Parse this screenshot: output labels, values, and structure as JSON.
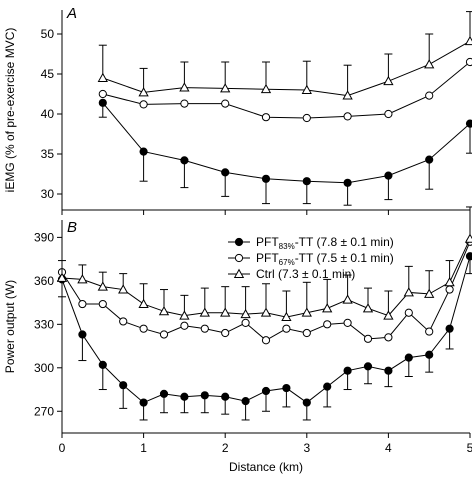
{
  "chart_data": [
    {
      "type": "line",
      "panel_label": "A",
      "title": "",
      "xlabel": "",
      "ylabel": "iEMG (% of pre-exercise MVC)",
      "xlim": [
        0,
        5
      ],
      "ylim": [
        28,
        53
      ],
      "yticks": [
        30,
        35,
        40,
        45,
        50
      ],
      "grid": false,
      "series": [
        {
          "key": "pft83",
          "marker": "filled-circle",
          "x": [
            0.5,
            1.0,
            1.5,
            2.0,
            2.5,
            3.0,
            3.5,
            4.0,
            4.5,
            5.0
          ],
          "y": [
            41.4,
            35.3,
            34.2,
            32.7,
            31.9,
            31.6,
            31.4,
            32.3,
            34.3,
            38.8
          ],
          "err": [
            1.8,
            3.7,
            3.4,
            3.0,
            3.1,
            2.8,
            2.8,
            3.0,
            3.7,
            3.7
          ],
          "err_dir": "down"
        },
        {
          "key": "pft67",
          "marker": "open-circle",
          "x": [
            0.5,
            1.0,
            1.5,
            2.0,
            2.5,
            3.0,
            3.5,
            4.0,
            4.5,
            5.0
          ],
          "y": [
            42.5,
            41.2,
            41.3,
            41.3,
            39.6,
            39.5,
            39.7,
            40.0,
            42.3,
            46.5
          ],
          "err": [],
          "err_dir": "none"
        },
        {
          "key": "ctrl",
          "marker": "open-triangle",
          "x": [
            0.5,
            1.0,
            1.5,
            2.0,
            2.5,
            3.0,
            3.5,
            4.0,
            4.5,
            5.0
          ],
          "y": [
            44.5,
            42.7,
            43.3,
            43.2,
            43.1,
            43.0,
            42.3,
            44.1,
            46.2,
            49.1
          ],
          "err": [
            4.1,
            3.0,
            3.2,
            3.3,
            3.4,
            3.6,
            3.8,
            3.4,
            3.8,
            3.7
          ],
          "err_dir": "up"
        }
      ]
    },
    {
      "type": "line",
      "panel_label": "B",
      "title": "",
      "xlabel": "Distance (km)",
      "ylabel": "Power output (W)",
      "xlim": [
        0,
        5
      ],
      "ylim": [
        255,
        402
      ],
      "yticks": [
        270,
        300,
        330,
        360,
        390
      ],
      "xticks": [
        0,
        1,
        2,
        3,
        4,
        5
      ],
      "grid": false,
      "legend_position": "top-right",
      "series": [
        {
          "key": "pft83",
          "name": "PFT83%-TT (7.8 ± 0.1 min)",
          "marker": "filled-circle",
          "x": [
            0.0,
            0.25,
            0.5,
            0.75,
            1.0,
            1.25,
            1.5,
            1.75,
            2.0,
            2.25,
            2.5,
            2.75,
            3.0,
            3.25,
            3.5,
            3.75,
            4.0,
            4.25,
            4.5,
            4.75,
            5.0
          ],
          "y": [
            361,
            323,
            302,
            288,
            276,
            282,
            280,
            281,
            280,
            277,
            284,
            286,
            276,
            287,
            298,
            301,
            298,
            307,
            309,
            327,
            377
          ],
          "err": [
            12,
            18,
            17,
            16,
            12,
            13,
            11,
            12,
            12,
            13,
            14,
            13,
            12,
            14,
            13,
            12,
            11,
            13,
            12,
            14,
            12
          ],
          "err_dir": "down"
        },
        {
          "key": "pft67",
          "name": "PFT67%-TT (7.5 ± 0.1 min)",
          "marker": "open-circle",
          "x": [
            0.0,
            0.25,
            0.5,
            0.75,
            1.0,
            1.25,
            1.5,
            1.75,
            2.0,
            2.25,
            2.5,
            2.75,
            3.0,
            3.25,
            3.5,
            3.75,
            4.0,
            4.25,
            4.5,
            4.75,
            5.0
          ],
          "y": [
            366,
            344,
            344,
            332,
            327,
            323,
            329,
            327,
            324,
            331,
            319,
            327,
            324,
            330,
            331,
            320,
            321,
            338,
            325,
            354,
            387
          ],
          "err": [],
          "err_dir": "none"
        },
        {
          "key": "ctrl",
          "name": "Ctrl (7.3 ± 0.1 min)",
          "marker": "open-triangle",
          "x": [
            0.0,
            0.25,
            0.5,
            0.75,
            1.0,
            1.25,
            1.5,
            1.75,
            2.0,
            2.25,
            2.5,
            2.75,
            3.0,
            3.25,
            3.5,
            3.75,
            4.0,
            4.25,
            4.5,
            4.75,
            5.0
          ],
          "y": [
            362,
            361,
            356,
            354,
            344,
            339,
            336,
            338,
            338,
            337,
            338,
            335,
            338,
            341,
            347,
            341,
            336,
            352,
            351,
            359,
            389
          ],
          "err": [
            12,
            10,
            10,
            11,
            14,
            15,
            14,
            17,
            18,
            19,
            20,
            18,
            21,
            20,
            17,
            14,
            17,
            18,
            16,
            15,
            22
          ],
          "err_dir": "up"
        }
      ],
      "legend": [
        {
          "key": "pft83",
          "text": "PFT",
          "sub": "83%",
          "rest": "-TT (7.8 ± 0.1 min)"
        },
        {
          "key": "pft67",
          "text": "PFT",
          "sub": "67%",
          "rest": "-TT (7.5 ± 0.1 min)"
        },
        {
          "key": "ctrl",
          "text": "Ctrl (7.3 ± 0.1 min)",
          "sub": "",
          "rest": ""
        }
      ]
    }
  ]
}
